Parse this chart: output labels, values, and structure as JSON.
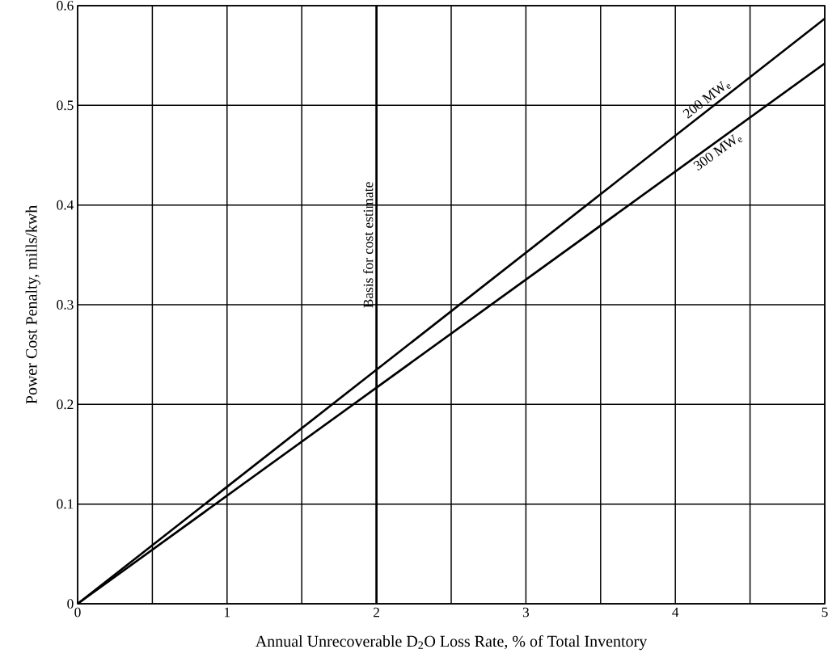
{
  "chart_data": {
    "type": "line",
    "xlabel": "Annual Unrecoverable D$_{2}$O Loss Rate, % of Total Inventory",
    "ylabel": "Power Cost Penalty, mills/kwh",
    "x": [
      0,
      5
    ],
    "series": [
      {
        "name": "200 MW$_{e}$",
        "color": "#000000",
        "values": [
          0,
          0.587
        ]
      },
      {
        "name": "300 MW$_{e}$",
        "color": "#000000",
        "values": [
          0,
          0.542
        ]
      }
    ],
    "xlim": [
      0,
      5
    ],
    "ylim": [
      0,
      0.6
    ],
    "xticks": [
      0,
      {
        "value": 0.5,
        "label": null
      },
      1,
      {
        "value": 1.5,
        "label": null
      },
      2,
      {
        "value": 2.5,
        "label": null
      },
      3,
      {
        "value": 3.5,
        "label": null
      },
      4,
      {
        "value": 4.5,
        "label": null
      },
      5
    ],
    "yticks": [
      0,
      0.1,
      0.2,
      0.3,
      0.4,
      0.5,
      0.6
    ],
    "ref_lines": [
      {
        "axis": "x",
        "value": 2,
        "label": "Basis for cost estimate"
      }
    ],
    "grid": true,
    "marker": "none",
    "line_style": "solid"
  }
}
